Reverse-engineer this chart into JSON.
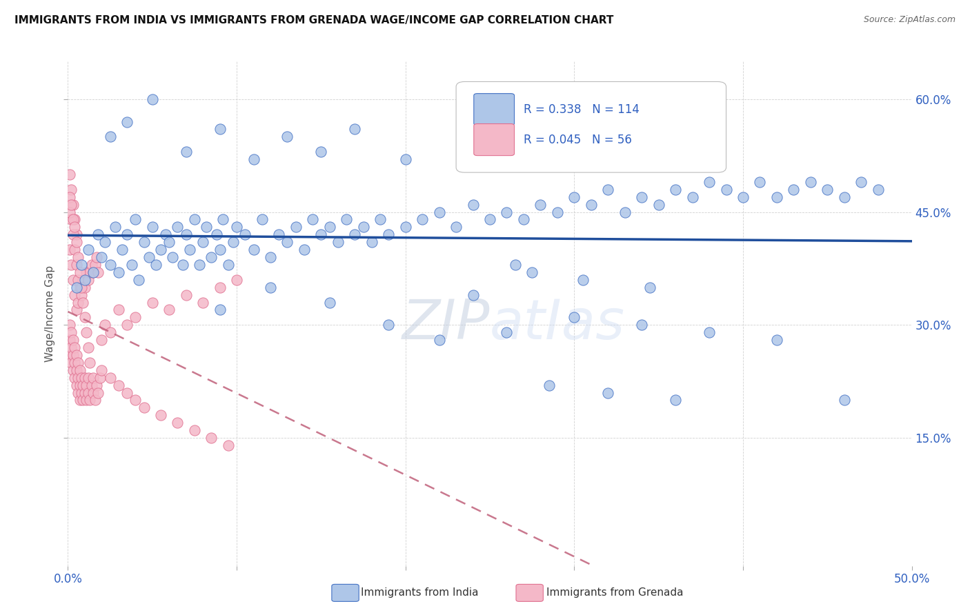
{
  "title": "IMMIGRANTS FROM INDIA VS IMMIGRANTS FROM GRENADA WAGE/INCOME GAP CORRELATION CHART",
  "source": "Source: ZipAtlas.com",
  "ylabel": "Wage/Income Gap",
  "xlim": [
    0.0,
    0.5
  ],
  "ylim": [
    -0.02,
    0.65
  ],
  "india_color": "#aec6e8",
  "india_edge_color": "#4472c4",
  "grenada_color": "#f4b8c8",
  "grenada_edge_color": "#e07090",
  "india_line_color": "#1f4e9c",
  "grenada_line_color": "#c0607a",
  "watermark_color": "#c8d8f0",
  "legend_r1": "0.338",
  "legend_n1": "114",
  "legend_r2": "0.045",
  "legend_n2": "56",
  "india_x": [
    0.005,
    0.008,
    0.01,
    0.012,
    0.015,
    0.018,
    0.02,
    0.022,
    0.025,
    0.028,
    0.03,
    0.032,
    0.035,
    0.038,
    0.04,
    0.042,
    0.045,
    0.048,
    0.05,
    0.052,
    0.055,
    0.058,
    0.06,
    0.062,
    0.065,
    0.068,
    0.07,
    0.072,
    0.075,
    0.078,
    0.08,
    0.082,
    0.085,
    0.088,
    0.09,
    0.092,
    0.095,
    0.098,
    0.1,
    0.105,
    0.11,
    0.115,
    0.12,
    0.125,
    0.13,
    0.135,
    0.14,
    0.145,
    0.15,
    0.155,
    0.16,
    0.165,
    0.17,
    0.175,
    0.18,
    0.185,
    0.19,
    0.2,
    0.21,
    0.22,
    0.23,
    0.24,
    0.25,
    0.26,
    0.27,
    0.28,
    0.29,
    0.3,
    0.31,
    0.32,
    0.33,
    0.34,
    0.35,
    0.36,
    0.37,
    0.38,
    0.39,
    0.4,
    0.41,
    0.42,
    0.43,
    0.44,
    0.45,
    0.46,
    0.47,
    0.48,
    0.025,
    0.035,
    0.05,
    0.07,
    0.09,
    0.11,
    0.13,
    0.15,
    0.17,
    0.2,
    0.09,
    0.12,
    0.155,
    0.19,
    0.22,
    0.26,
    0.3,
    0.34,
    0.38,
    0.42,
    0.46,
    0.285,
    0.32,
    0.36,
    0.265,
    0.305,
    0.24,
    0.275,
    0.345
  ],
  "india_y": [
    0.35,
    0.38,
    0.36,
    0.4,
    0.37,
    0.42,
    0.39,
    0.41,
    0.38,
    0.43,
    0.37,
    0.4,
    0.42,
    0.38,
    0.44,
    0.36,
    0.41,
    0.39,
    0.43,
    0.38,
    0.4,
    0.42,
    0.41,
    0.39,
    0.43,
    0.38,
    0.42,
    0.4,
    0.44,
    0.38,
    0.41,
    0.43,
    0.39,
    0.42,
    0.4,
    0.44,
    0.38,
    0.41,
    0.43,
    0.42,
    0.4,
    0.44,
    0.39,
    0.42,
    0.41,
    0.43,
    0.4,
    0.44,
    0.42,
    0.43,
    0.41,
    0.44,
    0.42,
    0.43,
    0.41,
    0.44,
    0.42,
    0.43,
    0.44,
    0.45,
    0.43,
    0.46,
    0.44,
    0.45,
    0.44,
    0.46,
    0.45,
    0.47,
    0.46,
    0.48,
    0.45,
    0.47,
    0.46,
    0.48,
    0.47,
    0.49,
    0.48,
    0.47,
    0.49,
    0.47,
    0.48,
    0.49,
    0.48,
    0.47,
    0.49,
    0.48,
    0.55,
    0.57,
    0.6,
    0.53,
    0.56,
    0.52,
    0.55,
    0.53,
    0.56,
    0.52,
    0.32,
    0.35,
    0.33,
    0.3,
    0.28,
    0.29,
    0.31,
    0.3,
    0.29,
    0.28,
    0.2,
    0.22,
    0.21,
    0.2,
    0.38,
    0.36,
    0.34,
    0.37,
    0.35
  ],
  "grenada_x": [
    0.001,
    0.001,
    0.001,
    0.002,
    0.002,
    0.002,
    0.003,
    0.003,
    0.003,
    0.004,
    0.004,
    0.004,
    0.005,
    0.005,
    0.005,
    0.006,
    0.006,
    0.006,
    0.007,
    0.007,
    0.007,
    0.008,
    0.008,
    0.009,
    0.009,
    0.01,
    0.01,
    0.011,
    0.011,
    0.012,
    0.012,
    0.013,
    0.014,
    0.015,
    0.015,
    0.016,
    0.017,
    0.018,
    0.019,
    0.02,
    0.022,
    0.025,
    0.03,
    0.035,
    0.04,
    0.05,
    0.06,
    0.07,
    0.08,
    0.09,
    0.1,
    0.001,
    0.002,
    0.003,
    0.004,
    0.005
  ],
  "grenada_y": [
    0.26,
    0.28,
    0.3,
    0.25,
    0.27,
    0.29,
    0.24,
    0.26,
    0.28,
    0.23,
    0.25,
    0.27,
    0.22,
    0.24,
    0.26,
    0.21,
    0.23,
    0.25,
    0.2,
    0.22,
    0.24,
    0.21,
    0.23,
    0.2,
    0.22,
    0.21,
    0.23,
    0.2,
    0.22,
    0.21,
    0.23,
    0.2,
    0.22,
    0.21,
    0.23,
    0.2,
    0.22,
    0.21,
    0.23,
    0.28,
    0.3,
    0.29,
    0.32,
    0.3,
    0.31,
    0.33,
    0.32,
    0.34,
    0.33,
    0.35,
    0.36,
    0.5,
    0.48,
    0.46,
    0.44,
    0.42
  ],
  "grenada_extra_x": [
    0.001,
    0.002,
    0.003,
    0.004,
    0.005,
    0.006,
    0.007,
    0.008,
    0.009,
    0.01,
    0.011,
    0.012,
    0.013,
    0.014,
    0.015,
    0.016,
    0.017,
    0.018,
    0.002,
    0.003,
    0.004,
    0.005,
    0.006,
    0.001,
    0.001,
    0.002,
    0.003,
    0.004,
    0.005,
    0.006,
    0.007,
    0.008,
    0.009,
    0.01,
    0.011,
    0.012,
    0.013,
    0.02,
    0.025,
    0.03,
    0.035,
    0.04,
    0.045,
    0.055,
    0.065,
    0.075,
    0.085,
    0.095
  ],
  "grenada_extra_y": [
    0.4,
    0.38,
    0.36,
    0.34,
    0.32,
    0.33,
    0.35,
    0.34,
    0.36,
    0.35,
    0.37,
    0.36,
    0.37,
    0.38,
    0.37,
    0.38,
    0.39,
    0.37,
    0.44,
    0.42,
    0.4,
    0.38,
    0.36,
    0.45,
    0.47,
    0.46,
    0.44,
    0.43,
    0.41,
    0.39,
    0.37,
    0.35,
    0.33,
    0.31,
    0.29,
    0.27,
    0.25,
    0.24,
    0.23,
    0.22,
    0.21,
    0.2,
    0.19,
    0.18,
    0.17,
    0.16,
    0.15,
    0.14
  ]
}
